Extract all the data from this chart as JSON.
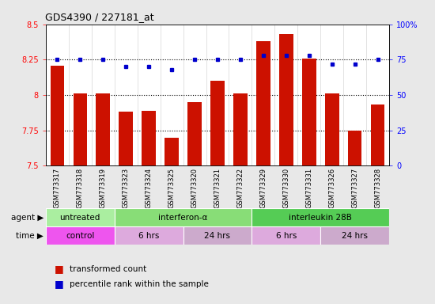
{
  "title": "GDS4390 / 227181_at",
  "samples": [
    "GSM773317",
    "GSM773318",
    "GSM773319",
    "GSM773323",
    "GSM773324",
    "GSM773325",
    "GSM773320",
    "GSM773321",
    "GSM773322",
    "GSM773329",
    "GSM773330",
    "GSM773331",
    "GSM773326",
    "GSM773327",
    "GSM773328"
  ],
  "bar_values": [
    8.21,
    8.01,
    8.01,
    7.88,
    7.89,
    7.7,
    7.95,
    8.1,
    8.01,
    8.38,
    8.43,
    8.26,
    8.01,
    7.75,
    7.93
  ],
  "dot_values": [
    75,
    75,
    75,
    70,
    70,
    68,
    75,
    75,
    75,
    78,
    78,
    78,
    72,
    72,
    75
  ],
  "ylim_left": [
    7.5,
    8.5
  ],
  "ylim_right": [
    0,
    100
  ],
  "yticks_left": [
    7.5,
    7.75,
    8.0,
    8.25,
    8.5
  ],
  "yticks_right": [
    0,
    25,
    50,
    75,
    100
  ],
  "ytick_labels_left": [
    "7.5",
    "7.75",
    "8",
    "8.25",
    "8.5"
  ],
  "ytick_labels_right": [
    "0",
    "25",
    "50",
    "75",
    "100%"
  ],
  "hlines": [
    7.75,
    8.0,
    8.25
  ],
  "bar_color": "#cc1100",
  "dot_color": "#0000cc",
  "agent_groups": [
    {
      "label": "untreated",
      "start": 0,
      "end": 3,
      "color": "#aaeea0"
    },
    {
      "label": "interferon-α",
      "start": 3,
      "end": 9,
      "color": "#88dd77"
    },
    {
      "label": "interleukin 28B",
      "start": 9,
      "end": 15,
      "color": "#55cc55"
    }
  ],
  "time_groups": [
    {
      "label": "control",
      "start": 0,
      "end": 3,
      "color": "#ee55ee"
    },
    {
      "label": "6 hrs",
      "start": 3,
      "end": 6,
      "color": "#ddaadd"
    },
    {
      "label": "24 hrs",
      "start": 6,
      "end": 9,
      "color": "#ccaacc"
    },
    {
      "label": "6 hrs",
      "start": 9,
      "end": 12,
      "color": "#ddaadd"
    },
    {
      "label": "24 hrs",
      "start": 12,
      "end": 15,
      "color": "#ccaacc"
    }
  ],
  "legend_items": [
    {
      "label": "transformed count",
      "color": "#cc1100"
    },
    {
      "label": "percentile rank within the sample",
      "color": "#0000cc"
    }
  ],
  "background_color": "#e8e8e8",
  "plot_bg": "#ffffff",
  "agent_row_label": "agent",
  "time_row_label": "time"
}
